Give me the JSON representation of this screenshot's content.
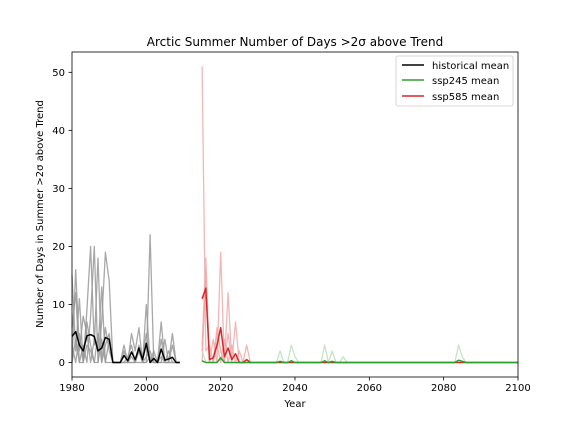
{
  "chart_data": {
    "type": "line",
    "title": "Arctic Summer Number of Days >2σ above Trend",
    "xlabel": "Year",
    "ylabel": "Number of Days in Summer >2σ above Trend",
    "xlim": [
      1980,
      2100
    ],
    "ylim": [
      -2.5,
      53.5
    ],
    "xticks": [
      1980,
      2000,
      2020,
      2040,
      2060,
      2080,
      2100
    ],
    "yticks": [
      0,
      10,
      20,
      30,
      40,
      50
    ],
    "grid": false,
    "legend_position": "top-right",
    "legend": [
      {
        "label": "historical mean",
        "color": "#000000"
      },
      {
        "label": "ssp245 mean",
        "color": "#2ca02c"
      },
      {
        "label": "ssp585 mean",
        "color": "#d62728"
      }
    ],
    "series": [
      {
        "name": "historical mean",
        "role": "mean",
        "color": "#000000",
        "x": [
          1980,
          1981,
          1982,
          1983,
          1984,
          1985,
          1986,
          1987,
          1988,
          1989,
          1990,
          1991,
          1992,
          1993,
          1994,
          1995,
          1996,
          1997,
          1998,
          1999,
          2000,
          2001,
          2002,
          2003,
          2004,
          2005,
          2006,
          2007,
          2008,
          2009
        ],
        "y": [
          4.5,
          5.3,
          3.0,
          2.0,
          4.6,
          4.8,
          4.5,
          2.0,
          2.5,
          4.3,
          4.0,
          0.0,
          0.0,
          0.0,
          1.2,
          0.3,
          1.8,
          0.5,
          2.5,
          0.5,
          3.3,
          0.0,
          0.7,
          0.0,
          2.3,
          0.4,
          0.6,
          0.9,
          0.0,
          0.0
        ]
      },
      {
        "name": "",
        "role": "member",
        "color": "#999999",
        "x": [
          1980,
          1981,
          1982,
          1983,
          1984,
          1985,
          1986,
          1987,
          1988,
          1989,
          1990,
          1991,
          1992,
          1993,
          1994,
          1995,
          1996,
          1997,
          1998,
          1999,
          2000,
          2001,
          2002,
          2003,
          2004,
          2005,
          2006,
          2007,
          2008,
          2009
        ],
        "y": [
          15,
          2,
          11,
          0,
          9,
          20,
          3,
          18,
          0,
          6,
          2,
          0,
          0,
          0,
          0,
          0,
          0,
          0,
          0,
          0,
          10,
          0,
          0,
          0,
          7,
          0,
          0,
          0,
          0,
          0
        ]
      },
      {
        "name": "",
        "role": "member",
        "color": "#999999",
        "x": [
          1980,
          1981,
          1982,
          1983,
          1984,
          1985,
          1986,
          1987,
          1988,
          1989,
          1990,
          1991,
          1992,
          1993,
          1994,
          1995,
          1996,
          1997,
          1998,
          1999,
          2000,
          2001,
          2002,
          2003,
          2004,
          2005,
          2006,
          2007,
          2008,
          2009
        ],
        "y": [
          6,
          12,
          0,
          3,
          0,
          8,
          20,
          0,
          7,
          19,
          14,
          0,
          0,
          0,
          3,
          0,
          5,
          2,
          6,
          0,
          0,
          22,
          0,
          0,
          0,
          4,
          0,
          5,
          0,
          0
        ]
      },
      {
        "name": "",
        "role": "member",
        "color": "#999999",
        "x": [
          1980,
          1981,
          1982,
          1983,
          1984,
          1985,
          1986,
          1987,
          1988,
          1989,
          1990,
          1991,
          1992,
          1993,
          1994,
          1995,
          1996,
          1997,
          1998,
          1999,
          2000,
          2001,
          2002,
          2003,
          2004,
          2005,
          2006,
          2007,
          2008,
          2009
        ],
        "y": [
          0,
          16,
          2,
          8,
          5,
          0,
          4,
          2,
          13,
          0,
          4,
          0,
          0,
          0,
          2,
          0,
          0,
          0,
          3,
          1,
          5,
          0,
          2,
          0,
          4,
          0,
          0,
          3,
          0,
          0
        ]
      },
      {
        "name": "",
        "role": "member",
        "color": "#999999",
        "x": [
          1980,
          1981,
          1982,
          1983,
          1984,
          1985,
          1986,
          1987,
          1988,
          1989,
          1990,
          1991,
          1992,
          1993,
          1994,
          1995,
          1996,
          1997,
          1998,
          1999,
          2000,
          2001,
          2002,
          2003,
          2004,
          2005,
          2006,
          2007,
          2008,
          2009
        ],
        "y": [
          3,
          0,
          5,
          0,
          7,
          3,
          0,
          0,
          4,
          0,
          0,
          0,
          0,
          0,
          0,
          1,
          3,
          0,
          2,
          0,
          0,
          1,
          0,
          0,
          0,
          0,
          2,
          0,
          0,
          0
        ]
      },
      {
        "name": "",
        "role": "member",
        "color": "#999999",
        "x": [
          1980,
          1981,
          1982,
          1983,
          1984,
          1985,
          1986,
          1987,
          1988,
          1989,
          1990,
          1991,
          1992,
          1993,
          1994,
          1995,
          1996,
          1997,
          1998,
          1999,
          2000,
          2001,
          2002,
          2003,
          2004,
          2005,
          2006,
          2007,
          2008,
          2009
        ],
        "y": [
          0,
          4,
          0,
          0,
          3,
          2,
          0,
          5,
          0,
          3,
          5,
          0,
          0,
          0,
          0,
          0,
          1,
          0,
          2,
          0,
          1,
          2,
          0,
          0,
          1,
          0,
          0,
          0,
          0,
          0
        ]
      },
      {
        "name": "",
        "role": "member",
        "color": "#f2a9a9",
        "x": [
          2015,
          2016,
          2017,
          2018,
          2019,
          2020,
          2021,
          2022,
          2023,
          2024,
          2025,
          2026,
          2027,
          2028
        ],
        "y": [
          51,
          2,
          3,
          0,
          6,
          2,
          0,
          5,
          0,
          0,
          0,
          0,
          0,
          0
        ]
      },
      {
        "name": "",
        "role": "member",
        "color": "#f2a9a9",
        "x": [
          2015,
          2016,
          2017,
          2018,
          2019,
          2020,
          2021,
          2022,
          2023,
          2024,
          2025,
          2026,
          2027,
          2028
        ],
        "y": [
          3,
          18,
          0,
          4,
          0,
          19,
          0,
          12,
          0,
          7,
          0,
          0,
          3,
          0
        ]
      },
      {
        "name": "",
        "role": "member",
        "color": "#f2a9a9",
        "x": [
          2015,
          2016,
          2017,
          2018,
          2019,
          2020,
          2021,
          2022,
          2023,
          2024,
          2025,
          2026,
          2027,
          2028
        ],
        "y": [
          2,
          14,
          0,
          0,
          3,
          0,
          4,
          0,
          3,
          0,
          2,
          0,
          0,
          0
        ]
      },
      {
        "name": "",
        "role": "member",
        "color": "#f2a9a9",
        "x": [
          2015,
          2016,
          2017,
          2018,
          2019,
          2020,
          2021,
          2022,
          2023,
          2024,
          2025,
          2026,
          2027,
          2028
        ],
        "y": [
          0,
          16,
          0,
          0,
          5,
          2,
          0,
          0,
          0,
          0,
          0,
          0,
          0,
          0
        ]
      },
      {
        "name": "",
        "role": "member",
        "color": "#b8e0b8",
        "x": [
          2015,
          2016,
          2017,
          2018,
          2019,
          2020,
          2021,
          2022,
          2023,
          2024,
          2025,
          2026,
          2027,
          2028
        ],
        "y": [
          2,
          0,
          0,
          0,
          0,
          1,
          0,
          0,
          0,
          0,
          0,
          0,
          0,
          0
        ]
      },
      {
        "name": "",
        "role": "member",
        "color": "#b8e0b8",
        "x": [
          2034,
          2035,
          2036,
          2037,
          2038,
          2039,
          2040,
          2041,
          2042,
          2043
        ],
        "y": [
          0,
          0,
          2,
          0,
          0,
          3,
          1,
          0,
          0,
          0
        ]
      },
      {
        "name": "",
        "role": "member",
        "color": "#b8e0b8",
        "x": [
          2046,
          2047,
          2048,
          2049,
          2050,
          2051,
          2052,
          2053,
          2054
        ],
        "y": [
          0,
          0,
          3,
          0,
          2,
          0,
          0,
          1,
          0
        ]
      },
      {
        "name": "",
        "role": "member",
        "color": "#b8e0b8",
        "x": [
          2079,
          2080,
          2081,
          2082,
          2083,
          2084,
          2085,
          2086,
          2087
        ],
        "y": [
          0,
          0,
          0,
          0,
          0,
          3,
          1,
          0,
          0
        ]
      },
      {
        "name": "ssp585 mean",
        "role": "mean",
        "color": "#d62728",
        "x": [
          2015,
          2016,
          2017,
          2018,
          2019,
          2020,
          2021,
          2022,
          2023,
          2024,
          2025,
          2026,
          2027,
          2028,
          2029,
          2030,
          2040,
          2060,
          2080,
          2100
        ],
        "y": [
          11,
          12.8,
          0.5,
          0.8,
          3.0,
          6.0,
          1.0,
          2.5,
          0.5,
          1.5,
          0.0,
          0.0,
          0.5,
          0.0,
          0.0,
          0.0,
          0.0,
          0.0,
          0.0,
          0.0
        ]
      },
      {
        "name": "ssp245 mean",
        "role": "mean",
        "color": "#2ca02c",
        "x": [
          2015,
          2016,
          2017,
          2018,
          2019,
          2020,
          2021,
          2022,
          2023,
          2035,
          2036,
          2037,
          2038,
          2039,
          2040,
          2047,
          2048,
          2049,
          2050,
          2051,
          2083,
          2084,
          2085,
          2086,
          2100
        ],
        "y": [
          0.3,
          0.0,
          0.0,
          0.0,
          0.0,
          0.8,
          0.0,
          0.0,
          0.0,
          0.0,
          0.2,
          0.0,
          0.0,
          0.3,
          0.0,
          0.0,
          0.3,
          0.0,
          0.2,
          0.0,
          0.0,
          0.4,
          0.2,
          0.0,
          0.0
        ]
      }
    ]
  }
}
